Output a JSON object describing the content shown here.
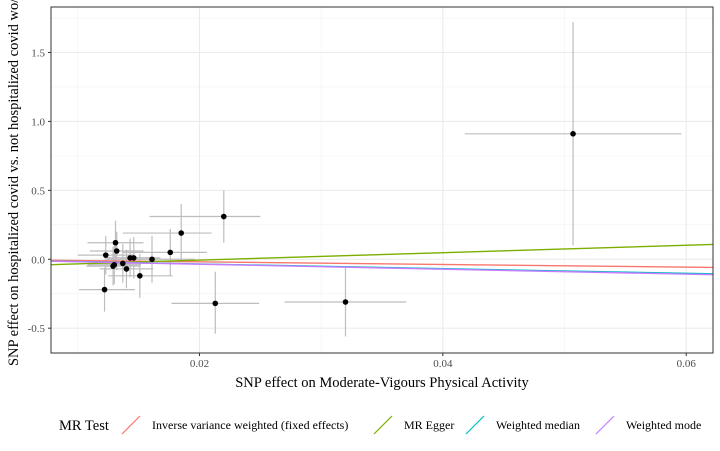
{
  "chart_data": {
    "type": "scatter",
    "xlabel": "SNP effect on Moderate-Vigours Physical Activity",
    "ylabel": "SNP effect on hospitalized covid vs. not hospitalized covid wo/f",
    "xlim": [
      0.0078,
      0.0622
    ],
    "ylim": [
      -0.68,
      1.83
    ],
    "x_ticks": [
      {
        "value": 0.02,
        "label": "0.02"
      },
      {
        "value": 0.04,
        "label": "0.04"
      },
      {
        "value": 0.06,
        "label": "0.06"
      }
    ],
    "y_ticks": [
      {
        "value": -0.5,
        "label": "-0.5"
      },
      {
        "value": 0.0,
        "label": "0.0"
      },
      {
        "value": 0.5,
        "label": "0.5"
      },
      {
        "value": 1.0,
        "label": "1.0"
      },
      {
        "value": 1.5,
        "label": "1.5"
      }
    ],
    "grid": true,
    "points": [
      {
        "x": 0.0507,
        "y": 0.91,
        "xlo": 0.0418,
        "xhi": 0.0596,
        "ylo": 0.1,
        "yhi": 1.72
      },
      {
        "x": 0.022,
        "y": 0.31,
        "xlo": 0.0159,
        "xhi": 0.025,
        "ylo": 0.12,
        "yhi": 0.5
      },
      {
        "x": 0.0185,
        "y": 0.19,
        "xlo": 0.0137,
        "xhi": 0.021,
        "ylo": -0.02,
        "yhi": 0.4
      },
      {
        "x": 0.0176,
        "y": 0.05,
        "xlo": 0.0137,
        "xhi": 0.0206,
        "ylo": -0.12,
        "yhi": 0.22
      },
      {
        "x": 0.0161,
        "y": 0.0,
        "xlo": 0.0124,
        "xhi": 0.0196,
        "ylo": -0.17,
        "yhi": 0.17
      },
      {
        "x": 0.0151,
        "y": -0.12,
        "xlo": 0.0125,
        "xhi": 0.0178,
        "ylo": -0.28,
        "yhi": 0.04
      },
      {
        "x": 0.0146,
        "y": 0.01,
        "xlo": 0.0124,
        "xhi": 0.0168,
        "ylo": -0.14,
        "yhi": 0.16
      },
      {
        "x": 0.0143,
        "y": 0.01,
        "xlo": 0.0122,
        "xhi": 0.0164,
        "ylo": -0.13,
        "yhi": 0.15
      },
      {
        "x": 0.014,
        "y": -0.07,
        "xlo": 0.0118,
        "xhi": 0.0162,
        "ylo": -0.21,
        "yhi": 0.07
      },
      {
        "x": 0.0137,
        "y": -0.03,
        "xlo": 0.0115,
        "xhi": 0.0159,
        "ylo": -0.17,
        "yhi": 0.11
      },
      {
        "x": 0.0132,
        "y": 0.06,
        "xlo": 0.011,
        "xhi": 0.0154,
        "ylo": -0.08,
        "yhi": 0.2
      },
      {
        "x": 0.0131,
        "y": 0.12,
        "xlo": 0.0108,
        "xhi": 0.0154,
        "ylo": -0.04,
        "yhi": 0.28
      },
      {
        "x": 0.013,
        "y": -0.04,
        "xlo": 0.0108,
        "xhi": 0.0152,
        "ylo": -0.18,
        "yhi": 0.1
      },
      {
        "x": 0.0129,
        "y": -0.05,
        "xlo": 0.0107,
        "xhi": 0.0151,
        "ylo": -0.19,
        "yhi": 0.09
      },
      {
        "x": 0.0123,
        "y": 0.03,
        "xlo": 0.01,
        "xhi": 0.0146,
        "ylo": -0.11,
        "yhi": 0.17
      },
      {
        "x": 0.0122,
        "y": -0.22,
        "xlo": 0.0101,
        "xhi": 0.0147,
        "ylo": -0.38,
        "yhi": -0.06
      },
      {
        "x": 0.0213,
        "y": -0.32,
        "xlo": 0.0177,
        "xhi": 0.0249,
        "ylo": -0.54,
        "yhi": -0.09
      },
      {
        "x": 0.032,
        "y": -0.31,
        "xlo": 0.027,
        "xhi": 0.037,
        "ylo": -0.56,
        "yhi": -0.06
      }
    ],
    "series": [
      {
        "name": "Inverse variance weighted (fixed effects)",
        "color": "#f8766d",
        "intercept": 0.0,
        "slope": -0.95
      },
      {
        "name": "MR Egger",
        "color": "#7cae00",
        "intercept": -0.06,
        "slope": 2.69
      },
      {
        "name": "Weighted median",
        "color": "#00bfc4",
        "intercept": 0.0,
        "slope": -1.7
      },
      {
        "name": "Weighted mode",
        "color": "#c77cff",
        "intercept": 0.0,
        "slope": -1.8
      }
    ],
    "legend": {
      "title": "MR Test",
      "position": "bottom"
    }
  }
}
